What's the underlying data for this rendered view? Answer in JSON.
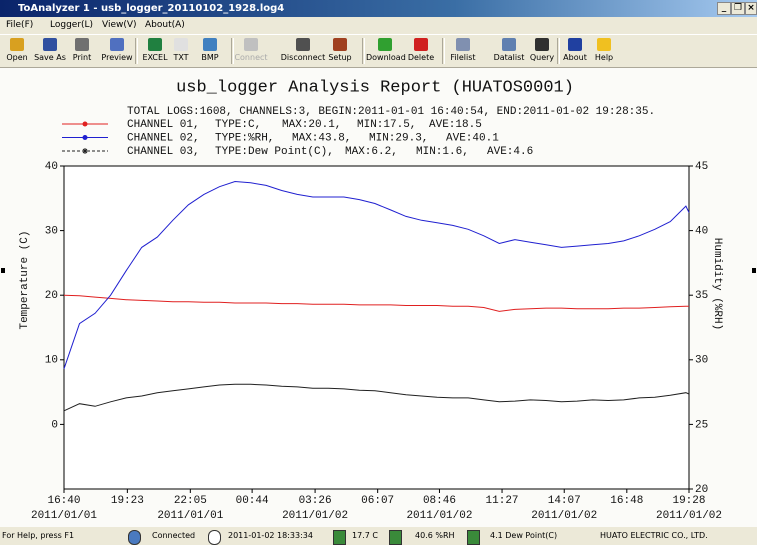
{
  "window": {
    "title": "ToAnalyzer 1 - usb_logger_20110102_1928.log4",
    "menu": [
      "File(F)",
      "Logger(L)",
      "View(V)",
      "About(A)"
    ],
    "toolbar": [
      "Open",
      "Save As",
      "Print",
      "Preview",
      "EXCEL",
      "TXT",
      "BMP",
      "Connect",
      "Disconnect",
      "Setup",
      "Download",
      "Delete",
      "Filelist",
      "Datalist",
      "Query",
      "About",
      "Help"
    ]
  },
  "chart_data": {
    "type": "line",
    "title": "usb_logger Analysis Report (HUATOS0001)",
    "subtitle": "TOTAL LOGS:1608, CHANNELS:3, BEGIN:2011-01-01 16:40:54, END:2011-01-02 19:28:35.",
    "ylabel": "Temperature (C)",
    "y2label": "Humidity (%RH)",
    "x": [
      "2011-01-01 16:40",
      "2011-01-01 17:20",
      "2011-01-01 18:00",
      "2011-01-01 18:40",
      "2011-01-01 19:20",
      "2011-01-01 20:00",
      "2011-01-01 20:40",
      "2011-01-01 21:20",
      "2011-01-01 22:00",
      "2011-01-01 22:40",
      "2011-01-01 23:20",
      "2011-01-02 00:00",
      "2011-01-02 00:40",
      "2011-01-02 01:20",
      "2011-01-02 02:00",
      "2011-01-02 02:40",
      "2011-01-02 03:20",
      "2011-01-02 04:00",
      "2011-01-02 04:40",
      "2011-01-02 05:20",
      "2011-01-02 06:00",
      "2011-01-02 06:40",
      "2011-01-02 07:20",
      "2011-01-02 08:00",
      "2011-01-02 08:40",
      "2011-01-02 09:20",
      "2011-01-02 10:00",
      "2011-01-02 10:40",
      "2011-01-02 11:20",
      "2011-01-02 12:00",
      "2011-01-02 12:40",
      "2011-01-02 13:20",
      "2011-01-02 14:00",
      "2011-01-02 14:40",
      "2011-01-02 15:20",
      "2011-01-02 16:00",
      "2011-01-02 16:40",
      "2011-01-02 17:20",
      "2011-01-02 18:00",
      "2011-01-02 18:40",
      "2011-01-02 19:20",
      "2011-01-02 19:28"
    ],
    "xlim": [
      "2011-01-01 16:40",
      "2011-01-02 19:28"
    ],
    "xticks": [
      {
        "value": "2011-01-01 16:40",
        "label": "16:40",
        "date": "2011/01/01"
      },
      {
        "value": "2011-01-01 19:23",
        "label": "19:23"
      },
      {
        "value": "2011-01-01 22:05",
        "label": "22:05",
        "date": "2011/01/01"
      },
      {
        "value": "2011-01-02 00:44",
        "label": "00:44"
      },
      {
        "value": "2011-01-02 03:26",
        "label": "03:26",
        "date": "2011/01/02"
      },
      {
        "value": "2011-01-02 06:07",
        "label": "06:07"
      },
      {
        "value": "2011-01-02 08:46",
        "label": "08:46",
        "date": "2011/01/02"
      },
      {
        "value": "2011-01-02 11:27",
        "label": "11:27"
      },
      {
        "value": "2011-01-02 14:07",
        "label": "14:07",
        "date": "2011/01/02"
      },
      {
        "value": "2011-01-02 16:48",
        "label": "16:48"
      },
      {
        "value": "2011-01-02 19:28",
        "label": "19:28",
        "date": "2011/01/02"
      }
    ],
    "ylim": [
      -10,
      40
    ],
    "yticks": [
      0,
      10,
      20,
      30,
      40
    ],
    "y2lim": [
      20,
      45
    ],
    "y2ticks": [
      20,
      25,
      30,
      35,
      40,
      45
    ],
    "grid": false,
    "series": [
      {
        "name": "CHANNEL 01,",
        "legend_fields": [
          "TYPE:C,",
          "MAX:20.1,",
          "MIN:17.5,",
          "AVE:18.5"
        ],
        "color": "#e02020",
        "marker": "circle",
        "line_style": "solid",
        "values": [
          20.0,
          19.9,
          19.7,
          19.5,
          19.3,
          19.2,
          19.1,
          19.0,
          19.0,
          18.9,
          18.9,
          18.8,
          18.8,
          18.8,
          18.7,
          18.7,
          18.6,
          18.6,
          18.6,
          18.5,
          18.5,
          18.5,
          18.4,
          18.4,
          18.4,
          18.3,
          18.3,
          18.1,
          17.5,
          17.8,
          17.9,
          18.0,
          18.0,
          17.9,
          17.9,
          17.9,
          18.0,
          18.0,
          18.1,
          18.2,
          18.3,
          18.3
        ]
      },
      {
        "name": "CHANNEL 02,",
        "legend_fields": [
          "TYPE:%RH,",
          "MAX:43.8,",
          "MIN:29.3,",
          "AVE:40.1"
        ],
        "color": "#2020d0",
        "marker": "circle",
        "line_style": "solid",
        "axis": "y2",
        "values": [
          29.3,
          32.8,
          33.6,
          35.0,
          36.9,
          38.7,
          39.5,
          40.8,
          42.0,
          42.8,
          43.4,
          43.8,
          43.7,
          43.5,
          43.1,
          42.8,
          42.6,
          42.6,
          42.6,
          42.4,
          42.1,
          41.6,
          41.1,
          40.8,
          40.6,
          40.4,
          40.1,
          39.6,
          39.0,
          39.3,
          39.1,
          38.9,
          38.7,
          38.8,
          38.9,
          39.0,
          39.2,
          39.6,
          40.1,
          40.7,
          41.9,
          41.4
        ]
      },
      {
        "name": "CHANNEL 03,",
        "legend_fields": [
          "TYPE:Dew Point(C),",
          "MAX:6.2,",
          "MIN:1.6,",
          "AVE:4.6"
        ],
        "color": "#202020",
        "marker": "star",
        "line_style": "dashed",
        "values": [
          2.1,
          3.2,
          2.8,
          3.5,
          4.1,
          4.4,
          4.9,
          5.2,
          5.5,
          5.8,
          6.1,
          6.2,
          6.2,
          6.1,
          5.9,
          5.8,
          5.6,
          5.6,
          5.5,
          5.3,
          5.2,
          4.9,
          4.6,
          4.4,
          4.2,
          4.1,
          4.1,
          3.8,
          3.5,
          3.6,
          3.8,
          3.7,
          3.5,
          3.6,
          3.8,
          3.7,
          3.8,
          4.1,
          4.2,
          4.5,
          4.9,
          4.7
        ]
      }
    ]
  },
  "status_bar": {
    "help": "For Help, press F1",
    "connection": "Connected",
    "time": "2011-01-02 18:33:34",
    "temperature": "17.7 C",
    "humidity": "40.6 %RH",
    "dew_point": "4.1 Dew Point(C)",
    "company": "HUATO ELECTRIC CO., LTD."
  }
}
